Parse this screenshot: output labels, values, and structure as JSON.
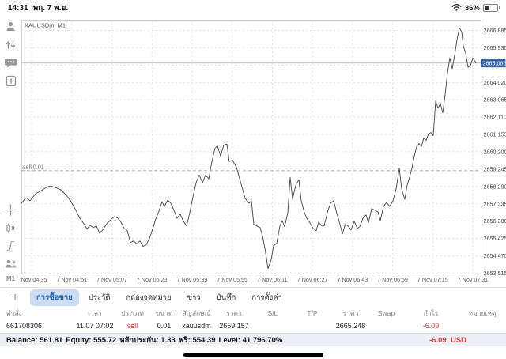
{
  "status_bar": {
    "time": "14:31",
    "date": "พฤ. 7 พ.ย.",
    "battery_pct": "36%"
  },
  "sidebar": {
    "top_icons": [
      "account-icon",
      "trade-icon",
      "chat-icon",
      "new-order-icon"
    ],
    "bottom_icons": [
      "crosshair-icon",
      "chart-type-icon",
      "indicators-icon",
      "objects-icon"
    ],
    "indicators_glyph": "ƒ",
    "timeframe_label": "M1"
  },
  "chart": {
    "title": "XAUUSDm, M1"
  },
  "chart_data": {
    "type": "line",
    "title": "XAUUSDm, M1",
    "symbol": "XAUUSDm",
    "timeframe": "M1",
    "ylim": [
      2653.49,
      2667.47
    ],
    "grid": true,
    "y_ticks": [
      2666.885,
      2665.93,
      2664.975,
      2664.02,
      2663.065,
      2662.11,
      2661.155,
      2660.2,
      2659.245,
      2658.29,
      2657.335,
      2656.38,
      2655.425,
      2654.47,
      2653.515
    ],
    "x_ticks": [
      "7 Nov 04:35",
      "7 Nov 04:51",
      "7 Nov 05:07",
      "7 Nov 05:23",
      "7 Nov 05:39",
      "7 Nov 05:55",
      "7 Nov 06:11",
      "7 Nov 06:27",
      "7 Nov 06:43",
      "7 Nov 06:59",
      "7 Nov 07:15",
      "7 Nov 07:31"
    ],
    "current_price": 2665.088,
    "position_line": {
      "label": "sell 0.01",
      "price": 2659.157
    },
    "points": [
      [
        0,
        2657.37
      ],
      [
        6,
        2657.67
      ],
      [
        11,
        2657.5
      ],
      [
        18,
        2657.89
      ],
      [
        25,
        2658.06
      ],
      [
        31,
        2658.23
      ],
      [
        37,
        2658.32
      ],
      [
        43,
        2658.23
      ],
      [
        50,
        2658.1
      ],
      [
        57,
        2657.8
      ],
      [
        63,
        2657.45
      ],
      [
        69,
        2656.97
      ],
      [
        74,
        2656.54
      ],
      [
        79,
        2656.24
      ],
      [
        83,
        2655.94
      ],
      [
        87,
        2656.15
      ],
      [
        91,
        2656.02
      ],
      [
        95,
        2656.11
      ],
      [
        99,
        2655.72
      ],
      [
        103,
        2655.89
      ],
      [
        108,
        2656.24
      ],
      [
        113,
        2656.46
      ],
      [
        118,
        2656.63
      ],
      [
        122,
        2656.54
      ],
      [
        126,
        2656.33
      ],
      [
        130,
        2655.98
      ],
      [
        134,
        2655.85
      ],
      [
        138,
        2655.2
      ],
      [
        142,
        2655.29
      ],
      [
        146,
        2655.12
      ],
      [
        150,
        2655.29
      ],
      [
        154,
        2654.99
      ],
      [
        158,
        2655.07
      ],
      [
        162,
        2655.42
      ],
      [
        166,
        2655.94
      ],
      [
        170,
        2656.5
      ],
      [
        174,
        2656.93
      ],
      [
        178,
        2657.45
      ],
      [
        181,
        2657.19
      ],
      [
        185,
        2657.54
      ],
      [
        189,
        2657.37
      ],
      [
        193,
        2656.98
      ],
      [
        197,
        2656.54
      ],
      [
        201,
        2656.76
      ],
      [
        205,
        2656.37
      ],
      [
        209,
        2656.11
      ],
      [
        213,
        2656.85
      ],
      [
        217,
        2657.71
      ],
      [
        221,
        2658.49
      ],
      [
        225,
        2658.92
      ],
      [
        229,
        2658.49
      ],
      [
        233,
        2658.92
      ],
      [
        237,
        2658.71
      ],
      [
        241,
        2659.66
      ],
      [
        245,
        2660.4
      ],
      [
        248,
        2660.52
      ],
      [
        252,
        2659.96
      ],
      [
        256,
        2660.57
      ],
      [
        260,
        2660.61
      ],
      [
        263,
        2659.66
      ],
      [
        267,
        2659.74
      ],
      [
        272,
        2659.35
      ],
      [
        277,
        2658.58
      ],
      [
        283,
        2657.63
      ],
      [
        288,
        2657.37
      ],
      [
        291,
        2657.5
      ],
      [
        294,
        2656.2
      ],
      [
        298,
        2656.11
      ],
      [
        302,
        2656.02
      ],
      [
        305,
        2655.55
      ],
      [
        308,
        2654.9
      ],
      [
        312,
        2653.77
      ],
      [
        316,
        2654.25
      ],
      [
        319,
        2655.03
      ],
      [
        323,
        2655.16
      ],
      [
        327,
        2656.11
      ],
      [
        330,
        2656.41
      ],
      [
        333,
        2656.07
      ],
      [
        337,
        2656.85
      ],
      [
        340,
        2658.79
      ],
      [
        343,
        2657.58
      ],
      [
        347,
        2658.36
      ],
      [
        351,
        2658.66
      ],
      [
        354,
        2657.5
      ],
      [
        358,
        2656.85
      ],
      [
        361,
        2656.54
      ],
      [
        365,
        2656.28
      ],
      [
        369,
        2655.98
      ],
      [
        373,
        2655.85
      ],
      [
        376,
        2656.33
      ],
      [
        380,
        2656.11
      ],
      [
        383,
        2656.11
      ],
      [
        387,
        2656.85
      ],
      [
        391,
        2657.37
      ],
      [
        395,
        2657.5
      ],
      [
        399,
        2656.8
      ],
      [
        403,
        2656.2
      ],
      [
        406,
        2655.68
      ],
      [
        410,
        2656.24
      ],
      [
        414,
        2656.07
      ],
      [
        417,
        2655.89
      ],
      [
        421,
        2656.37
      ],
      [
        425,
        2655.98
      ],
      [
        428,
        2656.07
      ],
      [
        432,
        2656.54
      ],
      [
        436,
        2656.72
      ],
      [
        439,
        2656.28
      ],
      [
        443,
        2657.06
      ],
      [
        447,
        2656.98
      ],
      [
        451,
        2656.89
      ],
      [
        454,
        2656.41
      ],
      [
        458,
        2657.19
      ],
      [
        462,
        2657.41
      ],
      [
        466,
        2657.19
      ],
      [
        470,
        2657.5
      ],
      [
        474,
        2658.14
      ],
      [
        478,
        2659.31
      ],
      [
        481,
        2658.14
      ],
      [
        485,
        2657.58
      ],
      [
        488,
        2658.36
      ],
      [
        491,
        2658.79
      ],
      [
        494,
        2659.31
      ],
      [
        497,
        2659.96
      ],
      [
        500,
        2660.48
      ],
      [
        503,
        2660.65
      ],
      [
        506,
        2660.48
      ],
      [
        509,
        2660.96
      ],
      [
        512,
        2660.83
      ],
      [
        515,
        2661.18
      ],
      [
        518,
        2661.26
      ],
      [
        521,
        2661.09
      ],
      [
        524,
        2663.0
      ],
      [
        527,
        2662.6
      ],
      [
        530,
        2662.86
      ],
      [
        533,
        2662.34
      ],
      [
        536,
        2663.34
      ],
      [
        539,
        2664.55
      ],
      [
        542,
        2665.37
      ],
      [
        545,
        2664.77
      ],
      [
        548,
        2665.5
      ],
      [
        551,
        2666.37
      ],
      [
        554,
        2667.02
      ],
      [
        557,
        2666.8
      ],
      [
        559,
        2666.02
      ],
      [
        562,
        2665.63
      ],
      [
        565,
        2664.85
      ],
      [
        568,
        2664.94
      ],
      [
        571,
        2665.37
      ],
      [
        575,
        2665.09
      ]
    ],
    "colors": {
      "line": "#44474a",
      "grid": "#e2e2e2",
      "badge": "#35639d",
      "position_line": "#9a9a9a",
      "current_line": "#b8b8b8"
    }
  },
  "tabs": {
    "add_label": "+",
    "items": [
      {
        "id": "trade",
        "label": "การซื้อขาย",
        "selected": true
      },
      {
        "id": "history",
        "label": "ประวัติ",
        "selected": false
      },
      {
        "id": "mailbox",
        "label": "กล่องจดหมาย",
        "selected": false
      },
      {
        "id": "news",
        "label": "ข่าว",
        "selected": false
      },
      {
        "id": "journal",
        "label": "บันทึก",
        "selected": false
      },
      {
        "id": "settings",
        "label": "การตั้งค่า",
        "selected": false
      }
    ]
  },
  "trade_table": {
    "headers": [
      "คำสั่ง",
      "เวลา",
      "ประเภท",
      "ขนาด",
      "สัญลักษณ์",
      "ราคา",
      "S/L",
      "T/P",
      "ราคา",
      "Swap",
      "กำไร",
      "หมายเหตุ"
    ],
    "rows": [
      [
        "661708306",
        "11.07 07:02",
        "sell",
        "0.01",
        "xauusdm",
        "2659.157",
        "",
        "",
        "2665.248",
        "",
        "-6.09",
        ""
      ]
    ],
    "red_columns": [
      2,
      10
    ]
  },
  "footer": {
    "balance_parts": [
      {
        "label": "Balance:",
        "value": "561.81"
      },
      {
        "label": "Equity:",
        "value": "555.72"
      },
      {
        "label": "หลักประกัน:",
        "value": "1.33"
      },
      {
        "label": "ฟรี:",
        "value": "554.39"
      },
      {
        "label": "Level:",
        "value": "41 796.70%"
      }
    ],
    "profit": "-6.09",
    "currency": "USD"
  }
}
